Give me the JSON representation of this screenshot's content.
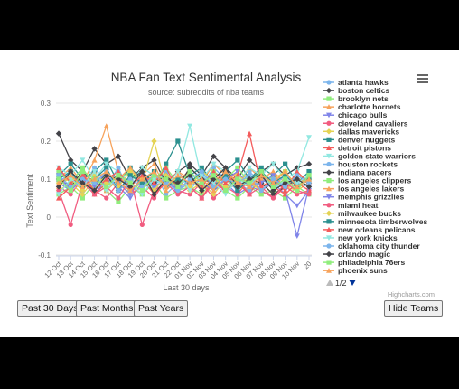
{
  "buttons": {
    "past_30_days": "Past 30 Days",
    "past_months": "Past Months",
    "past_years": "Past Years",
    "hide_teams": "Hide Teams"
  },
  "credits": "Highcharts.com",
  "legend_pager": "1/2",
  "chart_data": {
    "type": "line",
    "title": "NBA Fan Text Sentimental Analysis",
    "subtitle": "source: subreddits of nba teams",
    "xlabel": "Last 30 days",
    "ylabel": "Text Sentiment",
    "ylim": [
      -0.1,
      0.3
    ],
    "yticks": [
      -0.1,
      0,
      0.1,
      0.2,
      0.3
    ],
    "grid": true,
    "legend_placement": "right",
    "categories": [
      "12 Oct",
      "13 Oct",
      "14 Oct",
      "15 Oct",
      "16 Oct",
      "17 Oct",
      "18 Oct",
      "19 Oct",
      "20 Oct",
      "21 Oct",
      "22 Oct",
      "01 Nov",
      "02 Nov",
      "03 Nov",
      "04 Nov",
      "05 Nov",
      "06 Nov",
      "07 Nov",
      "08 Nov",
      "09 Nov",
      "10 Nov",
      "20"
    ],
    "series": [
      {
        "name": "atlanta hawks",
        "color": "#7cb5ec",
        "marker": "circle",
        "values": [
          0.12,
          0.1,
          0.08,
          0.13,
          0.09,
          0.11,
          0.07,
          0.1,
          0.12,
          0.06,
          0.09,
          0.11,
          0.08,
          0.13,
          0.1,
          0.07,
          0.12,
          0.09,
          0.11,
          0.08,
          0.1,
          0.09
        ]
      },
      {
        "name": "boston celtics",
        "color": "#434348",
        "marker": "diamond",
        "values": [
          0.22,
          0.15,
          0.12,
          0.18,
          0.14,
          0.16,
          0.1,
          0.13,
          0.15,
          0.09,
          0.12,
          0.14,
          0.11,
          0.16,
          0.13,
          0.1,
          0.15,
          0.12,
          0.14,
          0.11,
          0.13,
          0.14
        ]
      },
      {
        "name": "brooklyn nets",
        "color": "#90ed7d",
        "marker": "square",
        "values": [
          0.06,
          0.08,
          0.05,
          0.09,
          0.07,
          0.04,
          0.08,
          0.06,
          0.09,
          0.05,
          0.07,
          0.08,
          0.06,
          0.1,
          0.07,
          0.05,
          0.08,
          0.06,
          0.07,
          0.05,
          0.08,
          0.06
        ]
      },
      {
        "name": "charlotte hornets",
        "color": "#f7a35c",
        "marker": "triangle",
        "values": [
          0.1,
          0.13,
          0.09,
          0.15,
          0.24,
          0.12,
          0.08,
          0.11,
          0.14,
          0.07,
          0.1,
          0.12,
          0.09,
          0.14,
          0.11,
          0.08,
          0.13,
          0.1,
          0.12,
          0.09,
          0.11,
          0.1
        ]
      },
      {
        "name": "chicago bulls",
        "color": "#8085e9",
        "marker": "triangle-down",
        "values": [
          0.09,
          0.07,
          0.11,
          0.06,
          0.1,
          0.08,
          0.05,
          0.09,
          0.07,
          0.11,
          0.06,
          0.08,
          0.1,
          0.07,
          0.09,
          0.06,
          0.08,
          0.07,
          0.09,
          0.06,
          0.03,
          0.07
        ]
      },
      {
        "name": "cleveland cavaliers",
        "color": "#f15c80",
        "marker": "circle",
        "values": [
          0.08,
          0.06,
          0.1,
          0.07,
          0.05,
          0.09,
          0.06,
          0.08,
          0.05,
          0.1,
          0.07,
          0.06,
          0.09,
          0.05,
          0.08,
          0.06,
          0.1,
          0.07,
          0.05,
          0.08,
          0.06,
          0.07
        ]
      },
      {
        "name": "dallas mavericks",
        "color": "#e4d354",
        "marker": "diamond",
        "values": [
          0.07,
          0.09,
          0.06,
          0.1,
          0.08,
          0.11,
          0.07,
          0.09,
          0.2,
          0.08,
          0.1,
          0.07,
          0.09,
          0.06,
          0.1,
          0.08,
          0.07,
          0.09,
          0.06,
          0.08,
          0.07,
          0.09
        ]
      },
      {
        "name": "denver nuggets",
        "color": "#2b908f",
        "marker": "square",
        "values": [
          0.11,
          0.14,
          0.1,
          0.12,
          0.15,
          0.09,
          0.13,
          0.1,
          0.08,
          0.14,
          0.2,
          0.11,
          0.13,
          0.09,
          0.12,
          0.15,
          0.1,
          0.13,
          0.11,
          0.14,
          0.09,
          0.12
        ]
      },
      {
        "name": "detroit pistons",
        "color": "#f45b5b",
        "marker": "triangle",
        "values": [
          0.05,
          0.08,
          0.12,
          0.06,
          0.09,
          0.11,
          0.07,
          0.1,
          0.06,
          0.09,
          0.12,
          0.08,
          0.05,
          0.1,
          0.07,
          0.09,
          0.06,
          0.11,
          0.08,
          0.06,
          0.09,
          0.07
        ]
      },
      {
        "name": "golden state warriors",
        "color": "#91e8e1",
        "marker": "triangle-down",
        "values": [
          0.13,
          0.11,
          0.15,
          0.1,
          0.14,
          0.12,
          0.09,
          0.13,
          0.11,
          0.08,
          0.12,
          0.24,
          0.1,
          0.14,
          0.12,
          0.09,
          0.13,
          0.11,
          0.14,
          0.1,
          0.12,
          0.21
        ]
      },
      {
        "name": "houston rockets",
        "color": "#7cb5ec",
        "marker": "circle",
        "values": [
          0.09,
          0.12,
          0.07,
          0.11,
          0.08,
          0.13,
          0.06,
          0.1,
          0.08,
          0.12,
          0.07,
          0.09,
          0.11,
          0.08,
          0.12,
          0.09,
          0.07,
          0.1,
          0.08,
          0.11,
          0.09,
          0.08
        ]
      },
      {
        "name": "indiana pacers",
        "color": "#434348",
        "marker": "diamond",
        "values": [
          0.1,
          0.08,
          0.12,
          0.09,
          0.11,
          0.07,
          0.1,
          0.12,
          0.09,
          0.11,
          0.08,
          0.13,
          0.1,
          0.09,
          0.12,
          0.08,
          0.1,
          0.09,
          0.06,
          0.08,
          0.1,
          0.09
        ]
      },
      {
        "name": "los angeles clippers",
        "color": "#90ed7d",
        "marker": "square",
        "values": [
          0.12,
          0.09,
          0.13,
          0.08,
          0.11,
          0.1,
          0.12,
          0.08,
          0.1,
          0.13,
          0.09,
          0.11,
          0.08,
          0.12,
          0.1,
          0.13,
          0.09,
          0.11,
          0.1,
          0.12,
          0.08,
          0.11
        ]
      },
      {
        "name": "los angeles lakers",
        "color": "#f7a35c",
        "marker": "triangle",
        "values": [
          0.08,
          0.11,
          0.09,
          0.12,
          0.07,
          0.1,
          0.13,
          0.09,
          0.11,
          0.08,
          0.12,
          0.1,
          0.07,
          0.11,
          0.09,
          0.12,
          0.08,
          0.1,
          0.12,
          0.07,
          0.1,
          0.09
        ]
      },
      {
        "name": "memphis grizzlies",
        "color": "#8085e9",
        "marker": "triangle-down",
        "values": [
          0.11,
          0.07,
          0.1,
          0.08,
          0.12,
          0.09,
          0.06,
          0.11,
          0.08,
          0.1,
          0.07,
          0.12,
          0.09,
          0.07,
          0.1,
          0.12,
          0.08,
          0.09,
          0.11,
          0.07,
          -0.05,
          0.08
        ]
      },
      {
        "name": "miami heat",
        "color": "#f15c80",
        "marker": "circle",
        "values": [
          0.07,
          -0.02,
          0.09,
          0.06,
          0.08,
          0.05,
          0.1,
          -0.02,
          0.07,
          0.09,
          0.06,
          0.08,
          0.05,
          0.09,
          0.07,
          0.1,
          0.06,
          0.08,
          0.05,
          0.09,
          0.07,
          0.06
        ]
      },
      {
        "name": "milwaukee bucks",
        "color": "#e4d354",
        "marker": "diamond",
        "values": [
          0.09,
          0.1,
          0.07,
          0.11,
          0.09,
          0.08,
          0.12,
          0.1,
          0.07,
          0.11,
          0.09,
          0.08,
          0.12,
          0.1,
          0.08,
          0.11,
          0.09,
          0.07,
          0.1,
          0.12,
          0.08,
          0.1
        ]
      },
      {
        "name": "minnesota timberwolves",
        "color": "#2b908f",
        "marker": "square",
        "values": [
          0.1,
          0.12,
          0.08,
          0.1,
          0.13,
          0.07,
          0.11,
          0.09,
          0.12,
          0.08,
          0.1,
          0.09,
          0.12,
          0.08,
          0.11,
          0.07,
          0.1,
          0.12,
          0.09,
          0.11,
          0.08,
          0.1
        ]
      },
      {
        "name": "new orleans pelicans",
        "color": "#f45b5b",
        "marker": "triangle",
        "values": [
          0.13,
          0.09,
          0.11,
          0.07,
          0.1,
          0.12,
          0.08,
          0.11,
          0.09,
          0.13,
          0.07,
          0.1,
          0.08,
          0.12,
          0.09,
          0.11,
          0.22,
          0.08,
          0.1,
          0.07,
          0.12,
          0.09
        ]
      },
      {
        "name": "new york knicks",
        "color": "#91e8e1",
        "marker": "triangle-down",
        "values": [
          0.06,
          0.1,
          0.08,
          0.12,
          0.07,
          0.11,
          0.09,
          0.06,
          0.1,
          0.08,
          0.12,
          0.07,
          0.11,
          0.09,
          0.06,
          0.1,
          0.08,
          0.12,
          0.07,
          0.1,
          0.09,
          0.11
        ]
      },
      {
        "name": "oklahoma city thunder",
        "color": "#7cb5ec",
        "marker": "circle",
        "values": [
          0.11,
          0.08,
          0.1,
          0.09,
          0.12,
          0.07,
          0.1,
          0.08,
          0.11,
          0.09,
          0.07,
          0.1,
          0.12,
          0.08,
          0.1,
          0.09,
          0.11,
          0.07,
          0.1,
          0.08,
          0.11,
          0.09
        ]
      },
      {
        "name": "orlando magic",
        "color": "#434348",
        "marker": "diamond",
        "values": [
          0.08,
          0.12,
          0.09,
          0.07,
          0.11,
          0.1,
          0.08,
          0.12,
          0.06,
          0.1,
          0.09,
          0.11,
          0.07,
          0.1,
          0.13,
          0.08,
          0.1,
          0.11,
          0.07,
          0.09,
          0.1,
          0.08
        ]
      },
      {
        "name": "philadelphia 76ers",
        "color": "#90ed7d",
        "marker": "square",
        "values": [
          0.1,
          0.07,
          0.12,
          0.1,
          0.08,
          0.11,
          0.09,
          0.07,
          0.11,
          0.1,
          0.08,
          0.12,
          0.09,
          0.11,
          0.07,
          0.1,
          0.09,
          0.12,
          0.08,
          0.1,
          0.07,
          0.11
        ]
      },
      {
        "name": "phoenix suns",
        "color": "#f7a35c",
        "marker": "triangle",
        "values": [
          0.09,
          0.11,
          0.08,
          0.1,
          0.12,
          0.09,
          0.07,
          0.1,
          0.12,
          0.08,
          0.11,
          0.09,
          0.1,
          0.07,
          0.12,
          0.09,
          0.08,
          0.11,
          0.09,
          0.12,
          0.08,
          0.1
        ]
      }
    ]
  }
}
